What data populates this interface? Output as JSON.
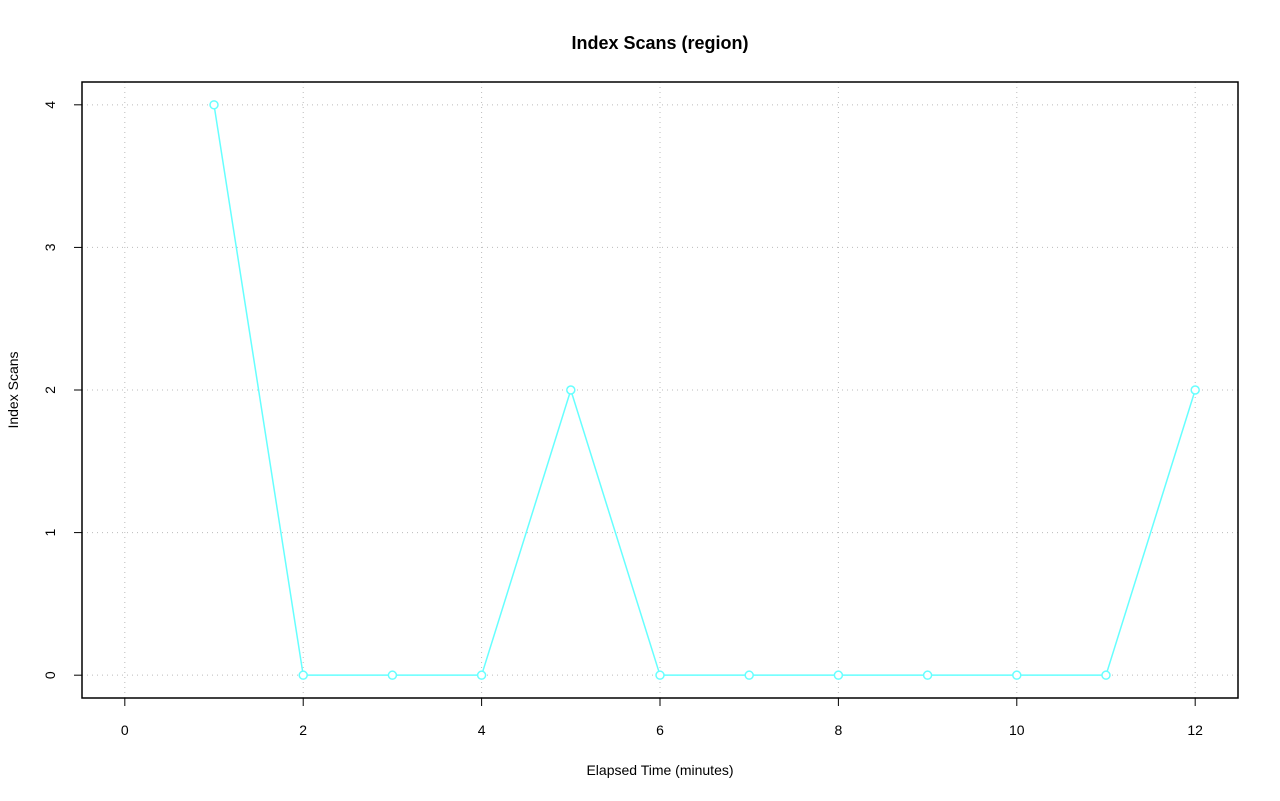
{
  "chart_data": {
    "type": "line",
    "title": "Index Scans (region)",
    "x_label": "Elapsed Time (minutes)",
    "y_label": "Index Scans",
    "x": [
      1,
      2,
      3,
      4,
      5,
      6,
      7,
      8,
      9,
      10,
      11,
      12
    ],
    "series": [
      {
        "name": "region",
        "color": "#66ffff",
        "values": [
          4,
          0,
          0,
          0,
          2,
          0,
          0,
          0,
          0,
          0,
          0,
          2
        ]
      }
    ],
    "xlim": [
      -0.48,
      12.48
    ],
    "xticks": [
      0,
      2,
      4,
      6,
      8,
      10,
      12
    ],
    "ylim": [
      -0.16,
      4.16
    ],
    "yticks": [
      0,
      1,
      2,
      3,
      4
    ],
    "grid": true,
    "markers": true
  }
}
